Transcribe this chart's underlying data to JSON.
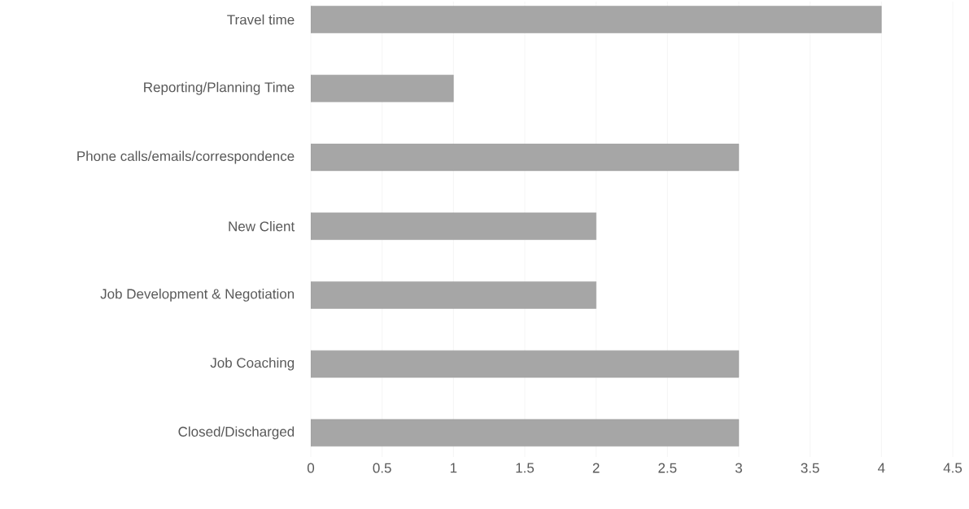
{
  "chart_data": {
    "type": "bar",
    "orientation": "horizontal",
    "categories": [
      "Travel time",
      "Reporting/Planning Time",
      "Phone calls/emails/correspondence",
      "New Client",
      "Job Development & Negotiation",
      "Job Coaching",
      "Closed/Discharged"
    ],
    "values": [
      4,
      1,
      3,
      2,
      2,
      3,
      3
    ],
    "color": "#a6a6a6",
    "xlim": [
      0,
      4.5
    ],
    "xticks": [
      0,
      0.5,
      1,
      1.5,
      2,
      2.5,
      3,
      3.5,
      4,
      4.5
    ],
    "grid": "x"
  }
}
